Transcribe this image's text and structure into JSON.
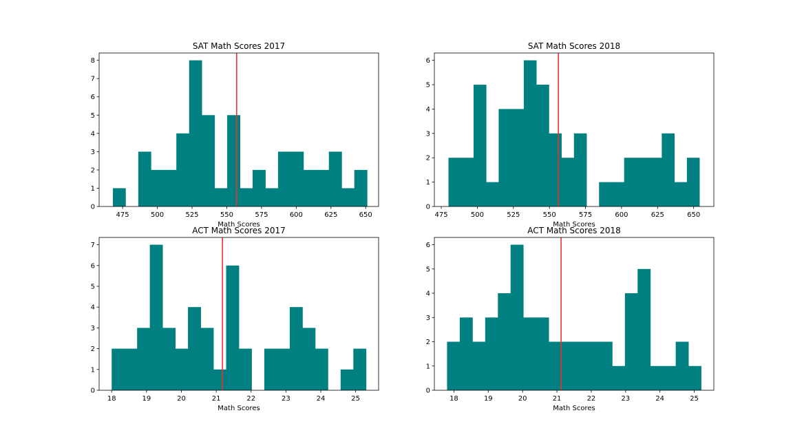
{
  "chart_data": [
    {
      "type": "bar",
      "title": "SAT Math Scores 2017",
      "xlabel": "Math Scores",
      "xlim": [
        458.1,
        659.3
      ],
      "ylim": [
        0,
        8.4
      ],
      "xticks": [
        475,
        500,
        525,
        550,
        575,
        600,
        625,
        650
      ],
      "yticks": [
        0,
        1,
        2,
        3,
        4,
        5,
        6,
        7,
        8
      ],
      "bin_edges": [
        468,
        477.1,
        486.3,
        495.4,
        504.6,
        513.7,
        522.9,
        532,
        541.2,
        550.3,
        559.5,
        568.6,
        577.8,
        586.9,
        596.1,
        605.2,
        614.4,
        623.5,
        632.7,
        641.8,
        651
      ],
      "values": [
        1,
        0,
        3,
        2,
        2,
        4,
        8,
        5,
        1,
        5,
        1,
        2,
        1,
        3,
        3,
        2,
        2,
        3,
        1,
        2
      ],
      "mean_line": 557.1,
      "bar_color": "#008080",
      "line_color": "#e8322d"
    },
    {
      "type": "bar",
      "title": "SAT Math Scores 2018",
      "xlabel": "Math Scores",
      "xlim": [
        470.2,
        664.0
      ],
      "ylim": [
        0,
        6.3
      ],
      "xticks": [
        475,
        500,
        525,
        550,
        575,
        600,
        625,
        650
      ],
      "yticks": [
        0,
        1,
        2,
        3,
        4,
        5,
        6
      ],
      "bin_edges": [
        480,
        488.7,
        497.4,
        506.1,
        514.8,
        523.5,
        532.2,
        540.9,
        549.6,
        558.3,
        567,
        575.7,
        584.4,
        593.1,
        601.8,
        610.5,
        619.2,
        627.9,
        636.6,
        645.3,
        654
      ],
      "values": [
        2,
        2,
        5,
        1,
        4,
        4,
        6,
        5,
        3,
        2,
        3,
        0,
        1,
        1,
        2,
        2,
        2,
        3,
        1,
        2
      ],
      "mean_line": 556.2,
      "bar_color": "#008080",
      "line_color": "#e8322d"
    },
    {
      "type": "bar",
      "title": "ACT Math Scores 2017",
      "xlabel": "Math Scores",
      "xlim": [
        17.64,
        25.66
      ],
      "ylim": [
        0,
        7.35
      ],
      "xticks": [
        18,
        19,
        20,
        21,
        22,
        23,
        24,
        25
      ],
      "yticks": [
        0,
        1,
        2,
        3,
        4,
        5,
        6,
        7
      ],
      "bin_edges": [
        18,
        18.365,
        18.73,
        19.095,
        19.46,
        19.825,
        20.19,
        20.555,
        20.92,
        21.285,
        21.65,
        22.015,
        22.38,
        22.745,
        23.11,
        23.475,
        23.84,
        24.205,
        24.57,
        24.935,
        25.3
      ],
      "values": [
        2,
        2,
        3,
        7,
        3,
        2,
        4,
        3,
        1,
        6,
        2,
        0,
        2,
        2,
        4,
        3,
        2,
        0,
        1,
        2
      ],
      "mean_line": 21.18,
      "bar_color": "#008080",
      "line_color": "#e8322d"
    },
    {
      "type": "bar",
      "title": "ACT Math Scores 2018",
      "xlabel": "Math Scores",
      "xlim": [
        17.43,
        25.57
      ],
      "ylim": [
        0,
        6.3
      ],
      "xticks": [
        18,
        19,
        20,
        21,
        22,
        23,
        24,
        25
      ],
      "yticks": [
        0,
        1,
        2,
        3,
        4,
        5,
        6
      ],
      "bin_edges": [
        17.8,
        18.17,
        18.54,
        18.91,
        19.28,
        19.65,
        20.02,
        20.39,
        20.76,
        21.13,
        21.5,
        21.87,
        22.24,
        22.61,
        22.98,
        23.35,
        23.72,
        24.09,
        24.46,
        24.83,
        25.2
      ],
      "values": [
        2,
        3,
        2,
        3,
        4,
        6,
        3,
        3,
        2,
        2,
        2,
        2,
        2,
        1,
        4,
        5,
        1,
        1,
        2,
        1
      ],
      "mean_line": 21.12,
      "bar_color": "#008080",
      "line_color": "#e8322d"
    }
  ]
}
